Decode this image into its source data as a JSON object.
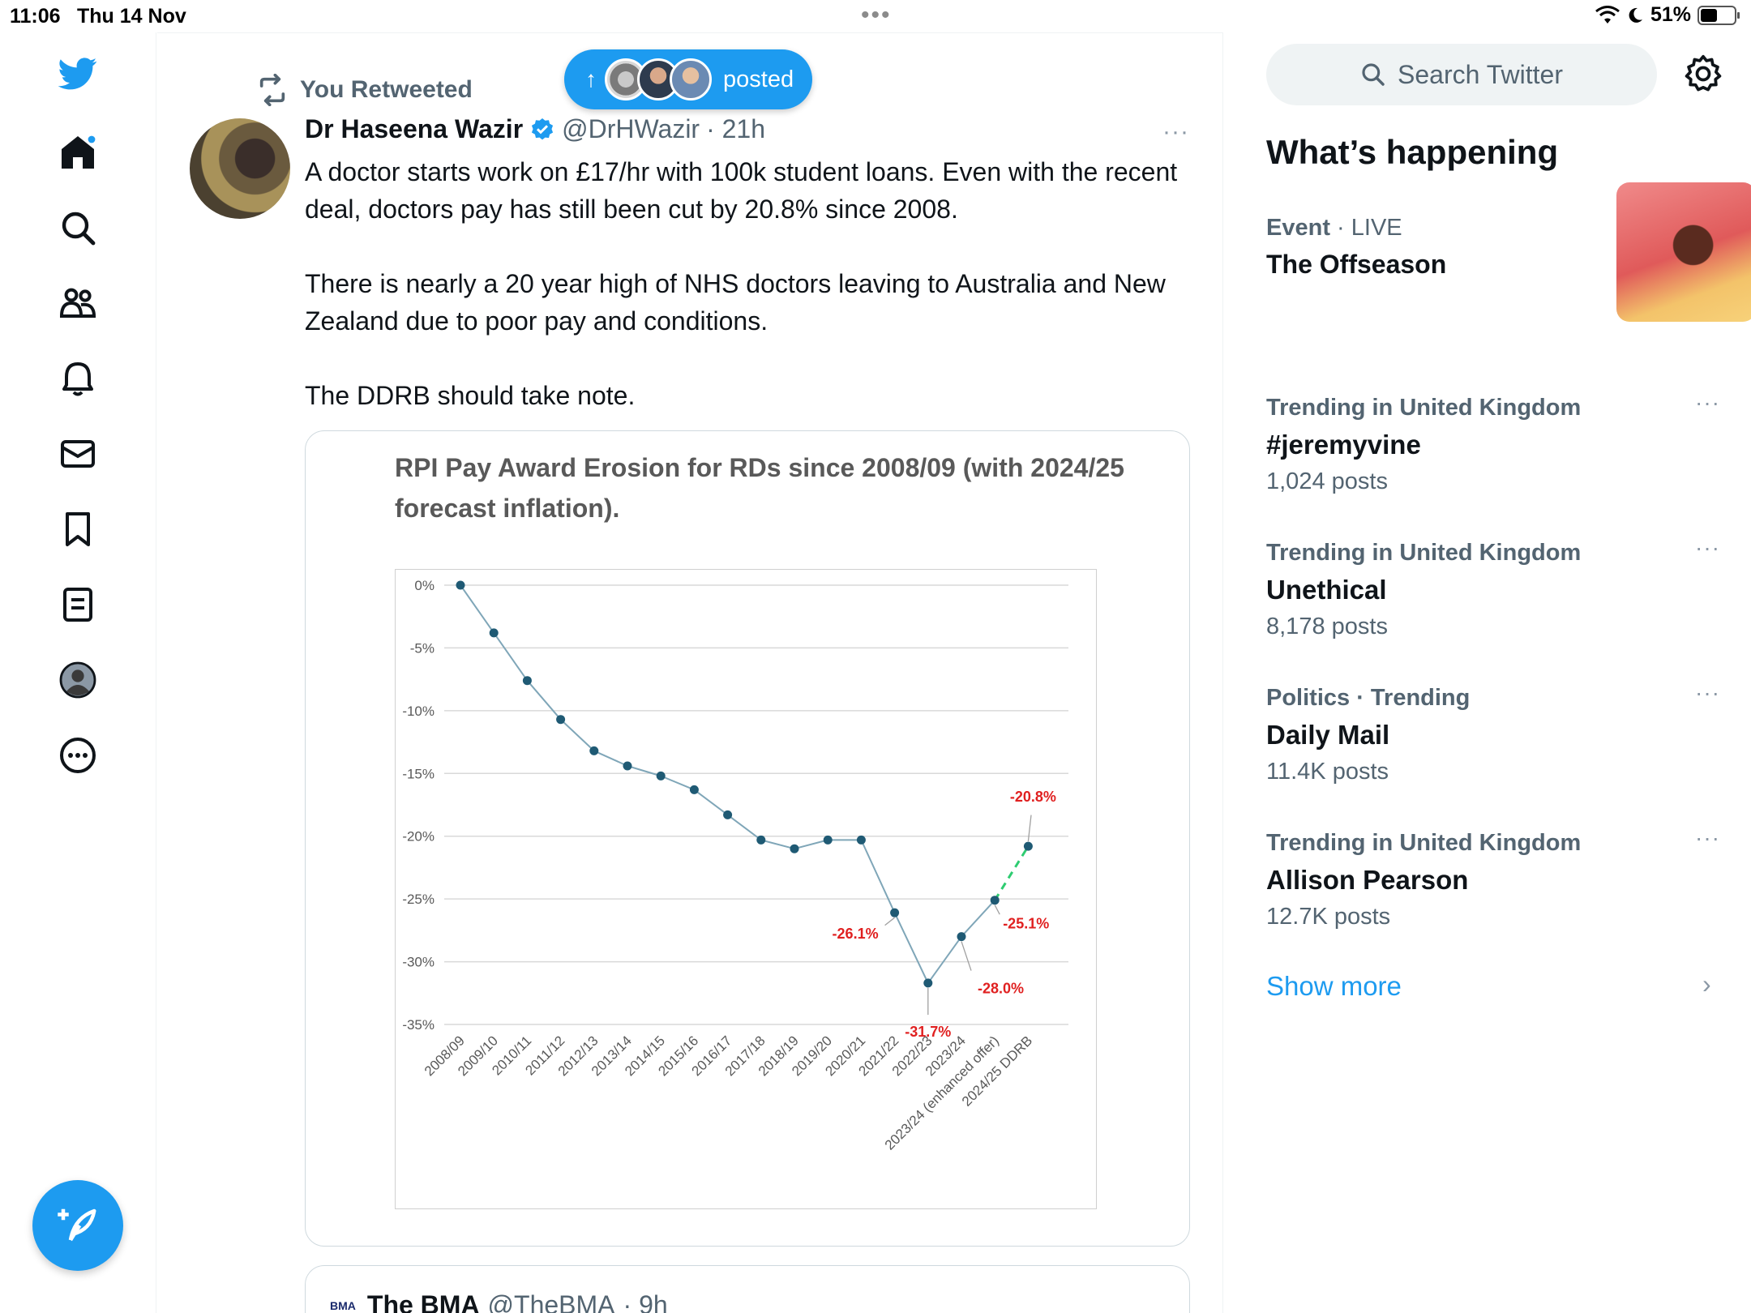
{
  "status_bar": {
    "time": "11:06",
    "date": "Thu 14 Nov",
    "battery": "51%",
    "battery_level": 0.51
  },
  "nav": {
    "icons": [
      "twitter-logo-icon",
      "home-icon",
      "search-icon",
      "communities-icon",
      "notifications-icon",
      "messages-icon",
      "bookmarks-icon",
      "lists-icon",
      "profile-icon",
      "more-icon",
      "compose-icon"
    ]
  },
  "posted_pill": {
    "label": "posted"
  },
  "tweet": {
    "retweet_label": "You Retweeted",
    "author_name": "Dr Haseena Wazir",
    "author_handle": "@DrHWazir",
    "time": "· 21h",
    "paragraphs": [
      "A doctor starts work on £17/hr with 100k student loans. Even with the recent deal, doctors pay has still been cut by 20.8% since 2008.",
      "There is nearly a 20 year high of NHS doctors leaving to Australia and New Zealand due to poor pay and conditions.",
      "The DDRB should take note."
    ],
    "more_label": "···"
  },
  "chart_data": {
    "type": "line",
    "title": "RPI Pay Award Erosion for RDs since 2008/09 (with 2024/25 forecast inflation).",
    "xlabel": "",
    "ylabel": "",
    "ylim": [
      -35,
      0
    ],
    "yticks": [
      0,
      -5,
      -10,
      -15,
      -20,
      -25,
      -30,
      -35
    ],
    "ytick_labels": [
      "0%",
      "-5%",
      "-10%",
      "-15%",
      "-20%",
      "-25%",
      "-30%",
      "-35%"
    ],
    "grid": true,
    "categories": [
      "2008/09",
      "2009/10",
      "2010/11",
      "2011/12",
      "2012/13",
      "2013/14",
      "2014/15",
      "2015/16",
      "2016/17",
      "2017/18",
      "2018/19",
      "2019/20",
      "2020/21",
      "2021/22",
      "2022/23",
      "2023/24",
      "2023/24 (enhanced offer)",
      "2024/25 DDRB"
    ],
    "values": [
      0,
      -3.8,
      -7.6,
      -10.7,
      -13.2,
      -14.4,
      -15.2,
      -16.3,
      -18.3,
      -20.3,
      -21.0,
      -20.3,
      -20.3,
      -26.1,
      -31.7,
      -28.0,
      -25.1,
      -20.8
    ],
    "forecast_segment_from_index": 16,
    "annotations": [
      {
        "index": 13,
        "label": "-26.1%"
      },
      {
        "index": 14,
        "label": "-31.7%"
      },
      {
        "index": 15,
        "label": "-28.0%"
      },
      {
        "index": 16,
        "label": "-25.1%"
      },
      {
        "index": 17,
        "label": "-20.8%"
      }
    ],
    "colors": {
      "line": "#7fa6b8",
      "marker": "#1f5a74",
      "forecast": "#2ecc71",
      "annotation": "#e02020"
    }
  },
  "quoted_tweet": {
    "logo_text": "BMA",
    "author_name": "The BMA",
    "author_handle": "@TheBMA",
    "time": "· 9h"
  },
  "sidebar": {
    "search_placeholder": "Search Twitter",
    "title": "What’s happening",
    "event": {
      "category": "Event",
      "status": "· LIVE",
      "title": "The Offseason"
    },
    "trends": [
      {
        "context": "Trending in United Kingdom",
        "title": "#jeremyvine",
        "count": "1,024 posts"
      },
      {
        "context": "Trending in United Kingdom",
        "title": "Unethical",
        "count": "8,178 posts"
      },
      {
        "context": "Politics · Trending",
        "title": "Daily Mail",
        "count": "11.4K posts"
      },
      {
        "context": "Trending in United Kingdom",
        "title": "Allison Pearson",
        "count": "12.7K posts"
      }
    ],
    "more_label": "···",
    "show_more": "Show more",
    "chevron": "›"
  }
}
